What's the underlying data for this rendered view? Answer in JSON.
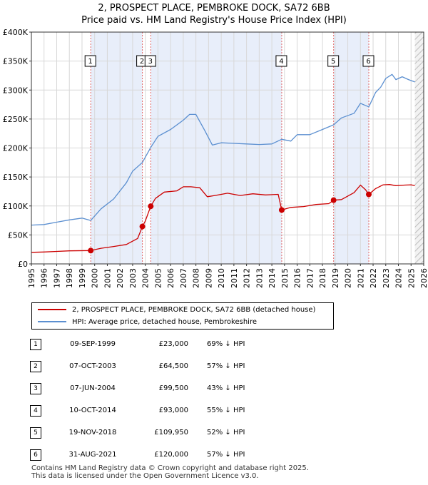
{
  "chart_data": {
    "type": "line",
    "title": "2, PROSPECT PLACE, PEMBROKE DOCK, SA72 6BB",
    "subtitle": "Price paid vs. HM Land Registry's House Price Index (HPI)",
    "xlim": [
      1995,
      2026
    ],
    "ylim": [
      0,
      400000
    ],
    "y_ticks": [
      0,
      50000,
      100000,
      150000,
      200000,
      250000,
      300000,
      350000,
      400000
    ],
    "y_tick_labels": [
      "£0",
      "£50K",
      "£100K",
      "£150K",
      "£200K",
      "£250K",
      "£300K",
      "£350K",
      "£400K"
    ],
    "x_ticks": [
      1995,
      1996,
      1997,
      1998,
      1999,
      2000,
      2001,
      2002,
      2003,
      2004,
      2005,
      2006,
      2007,
      2008,
      2009,
      2010,
      2011,
      2012,
      2013,
      2014,
      2015,
      2016,
      2017,
      2018,
      2019,
      2020,
      2021,
      2022,
      2023,
      2024,
      2025,
      2026
    ],
    "x_tick_labels": [
      "1995",
      "1996",
      "1997",
      "1998",
      "1999",
      "2000",
      "2001",
      "2002",
      "2003",
      "2004",
      "2005",
      "2006",
      "2007",
      "2008",
      "2009",
      "2010",
      "2011",
      "2012",
      "2013",
      "2014",
      "2015",
      "2016",
      "2017",
      "2018",
      "2019",
      "2020",
      "2021",
      "2022",
      "2023",
      "2024",
      "2025",
      "2026"
    ],
    "grid": true,
    "colors": {
      "property": "#cc0000",
      "hpi": "#5b8fd0",
      "shade": "#e8eefa",
      "marker_line": "#e06666",
      "grid": "#d8d8d8"
    },
    "shaded_periods": [
      [
        1999.69,
        2003.77
      ],
      [
        2004.43,
        2014.78
      ],
      [
        2018.88,
        2021.66
      ]
    ],
    "future_hatch_from": 2025.3,
    "series": [
      {
        "name": "2, PROSPECT PLACE, PEMBROKE DOCK, SA72 6BB (detached house)",
        "x": [
          1995.0,
          1996.0,
          1997.0,
          1998.0,
          1999.69,
          2000.5,
          2001.5,
          2002.5,
          2003.4,
          2003.77,
          2004.0,
          2004.43,
          2004.8,
          2005.5,
          2006.5,
          2007.0,
          2007.6,
          2008.3,
          2008.9,
          2009.5,
          2010.5,
          2011.5,
          2012.5,
          2013.5,
          2014.5,
          2014.78,
          2015.5,
          2016.5,
          2017.5,
          2018.5,
          2018.88,
          2019.5,
          2020.5,
          2021.0,
          2021.4,
          2021.66,
          2022.2,
          2022.8,
          2023.3,
          2023.8,
          2024.5,
          2025.0,
          2025.3
        ],
        "values": [
          20000,
          20500,
          21500,
          22500,
          23000,
          27000,
          30000,
          33500,
          44000,
          64500,
          74000,
          99500,
          113000,
          124000,
          126000,
          133000,
          133000,
          131500,
          116000,
          118000,
          122000,
          118000,
          121000,
          119000,
          120000,
          93000,
          97500,
          99000,
          102500,
          104000,
          109950,
          111000,
          123000,
          136000,
          128000,
          120000,
          130000,
          136500,
          137000,
          135000,
          136000,
          136500,
          135000
        ]
      },
      {
        "name": "HPI: Average price, detached house, Pembrokeshire",
        "x": [
          1995.0,
          1996.0,
          1997.0,
          1998.0,
          1999.0,
          1999.69,
          2000.5,
          2001.5,
          2002.5,
          2003.0,
          2003.77,
          2004.43,
          2005.0,
          2006.0,
          2007.0,
          2007.5,
          2008.0,
          2008.7,
          2009.3,
          2010.0,
          2011.0,
          2012.0,
          2013.0,
          2014.0,
          2014.78,
          2015.5,
          2016.0,
          2017.0,
          2018.0,
          2018.88,
          2019.5,
          2020.5,
          2021.0,
          2021.66,
          2022.2,
          2022.6,
          2023.0,
          2023.5,
          2023.8,
          2024.3,
          2024.8,
          2025.3
        ],
        "values": [
          67000,
          68000,
          72000,
          76000,
          79000,
          75000,
          95000,
          112000,
          140000,
          160000,
          175000,
          201000,
          220000,
          232000,
          248000,
          258000,
          258000,
          230000,
          205000,
          209000,
          208000,
          207000,
          206000,
          207000,
          215000,
          212000,
          223000,
          223000,
          232000,
          240000,
          252000,
          260000,
          277000,
          271000,
          296000,
          305000,
          320000,
          327000,
          318000,
          323000,
          318000,
          314000
        ]
      }
    ],
    "sale_markers": [
      {
        "label": "1",
        "x": 1999.69,
        "price": 23000
      },
      {
        "label": "2",
        "x": 2003.77,
        "price": 64500
      },
      {
        "label": "3",
        "x": 2004.43,
        "price": 99500
      },
      {
        "label": "4",
        "x": 2014.78,
        "price": 93000
      },
      {
        "label": "5",
        "x": 2018.88,
        "price": 109950
      },
      {
        "label": "6",
        "x": 2021.66,
        "price": 120000
      }
    ]
  },
  "legend": {
    "property_label": "2, PROSPECT PLACE, PEMBROKE DOCK, SA72 6BB (detached house)",
    "hpi_label": "HPI: Average price, detached house, Pembrokeshire"
  },
  "sales": [
    {
      "num": "1",
      "date": "09-SEP-1999",
      "price": "£23,000",
      "hpi": "69% ↓ HPI"
    },
    {
      "num": "2",
      "date": "07-OCT-2003",
      "price": "£64,500",
      "hpi": "57% ↓ HPI"
    },
    {
      "num": "3",
      "date": "07-JUN-2004",
      "price": "£99,500",
      "hpi": "43% ↓ HPI"
    },
    {
      "num": "4",
      "date": "10-OCT-2014",
      "price": "£93,000",
      "hpi": "55% ↓ HPI"
    },
    {
      "num": "5",
      "date": "19-NOV-2018",
      "price": "£109,950",
      "hpi": "52% ↓ HPI"
    },
    {
      "num": "6",
      "date": "31-AUG-2021",
      "price": "£120,000",
      "hpi": "57% ↓ HPI"
    }
  ],
  "footer": {
    "line1": "Contains HM Land Registry data © Crown copyright and database right 2025.",
    "line2": "This data is licensed under the Open Government Licence v3.0."
  }
}
